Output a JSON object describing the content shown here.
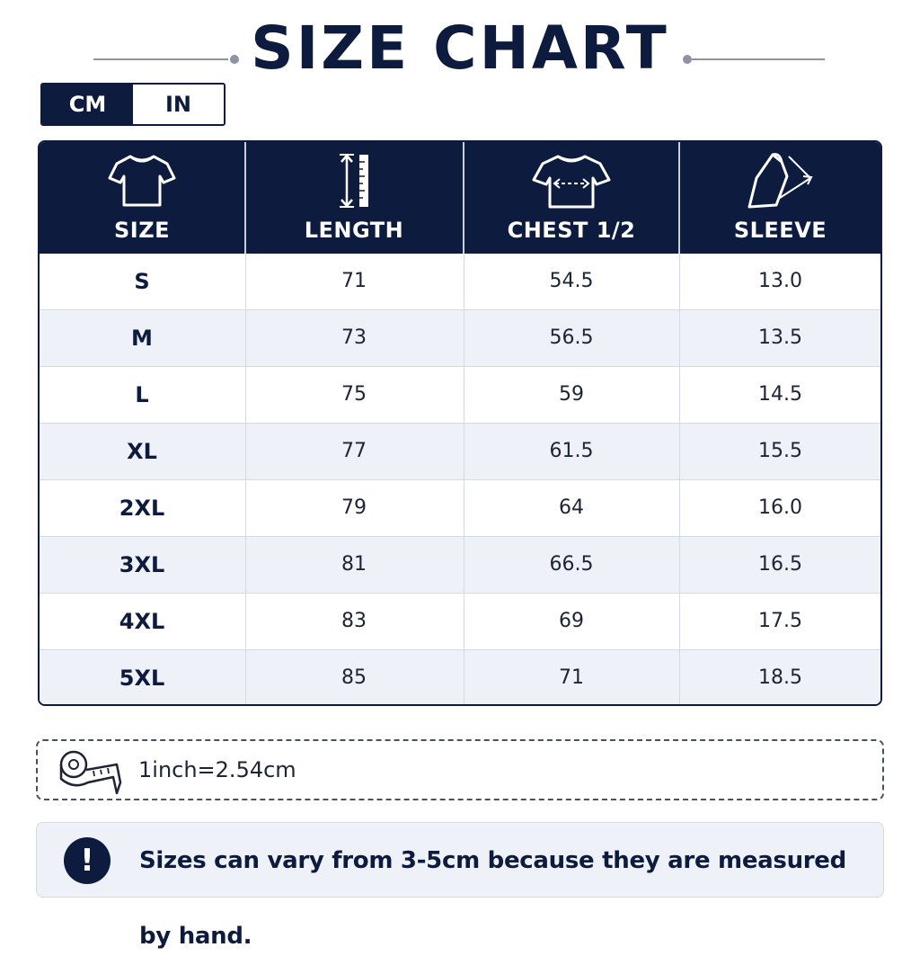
{
  "title": "SIZE CHART",
  "unit_toggle": {
    "options": [
      {
        "label": "CM",
        "active": true
      },
      {
        "label": "IN",
        "active": false
      }
    ]
  },
  "table": {
    "headers": [
      {
        "label": "SIZE",
        "icon": "tshirt-icon"
      },
      {
        "label": "LENGTH",
        "icon": "ruler-length-icon"
      },
      {
        "label": "CHEST 1/2",
        "icon": "tshirt-chest-icon"
      },
      {
        "label": "SLEEVE",
        "icon": "sleeve-icon"
      }
    ],
    "rows": [
      {
        "size": "S",
        "length": "71",
        "chest": "54.5",
        "sleeve": "13.0"
      },
      {
        "size": "M",
        "length": "73",
        "chest": "56.5",
        "sleeve": "13.5"
      },
      {
        "size": "L",
        "length": "75",
        "chest": "59",
        "sleeve": "14.5"
      },
      {
        "size": "XL",
        "length": "77",
        "chest": "61.5",
        "sleeve": "15.5"
      },
      {
        "size": "2XL",
        "length": "79",
        "chest": "64",
        "sleeve": "16.0"
      },
      {
        "size": "3XL",
        "length": "81",
        "chest": "66.5",
        "sleeve": "16.5"
      },
      {
        "size": "4XL",
        "length": "83",
        "chest": "69",
        "sleeve": "17.5"
      },
      {
        "size": "5XL",
        "length": "85",
        "chest": "71",
        "sleeve": "18.5"
      }
    ]
  },
  "conversion": {
    "icon": "measuring-tape-icon",
    "text": "1inch=2.54cm"
  },
  "note": {
    "icon": "exclamation-icon",
    "symbol": "!",
    "text": "Sizes can vary from 3-5cm because they are measured by hand."
  },
  "colors": {
    "navy": "#0d1b3e",
    "alt_row": "#eef1f7",
    "divider": "#d5d9e2"
  }
}
